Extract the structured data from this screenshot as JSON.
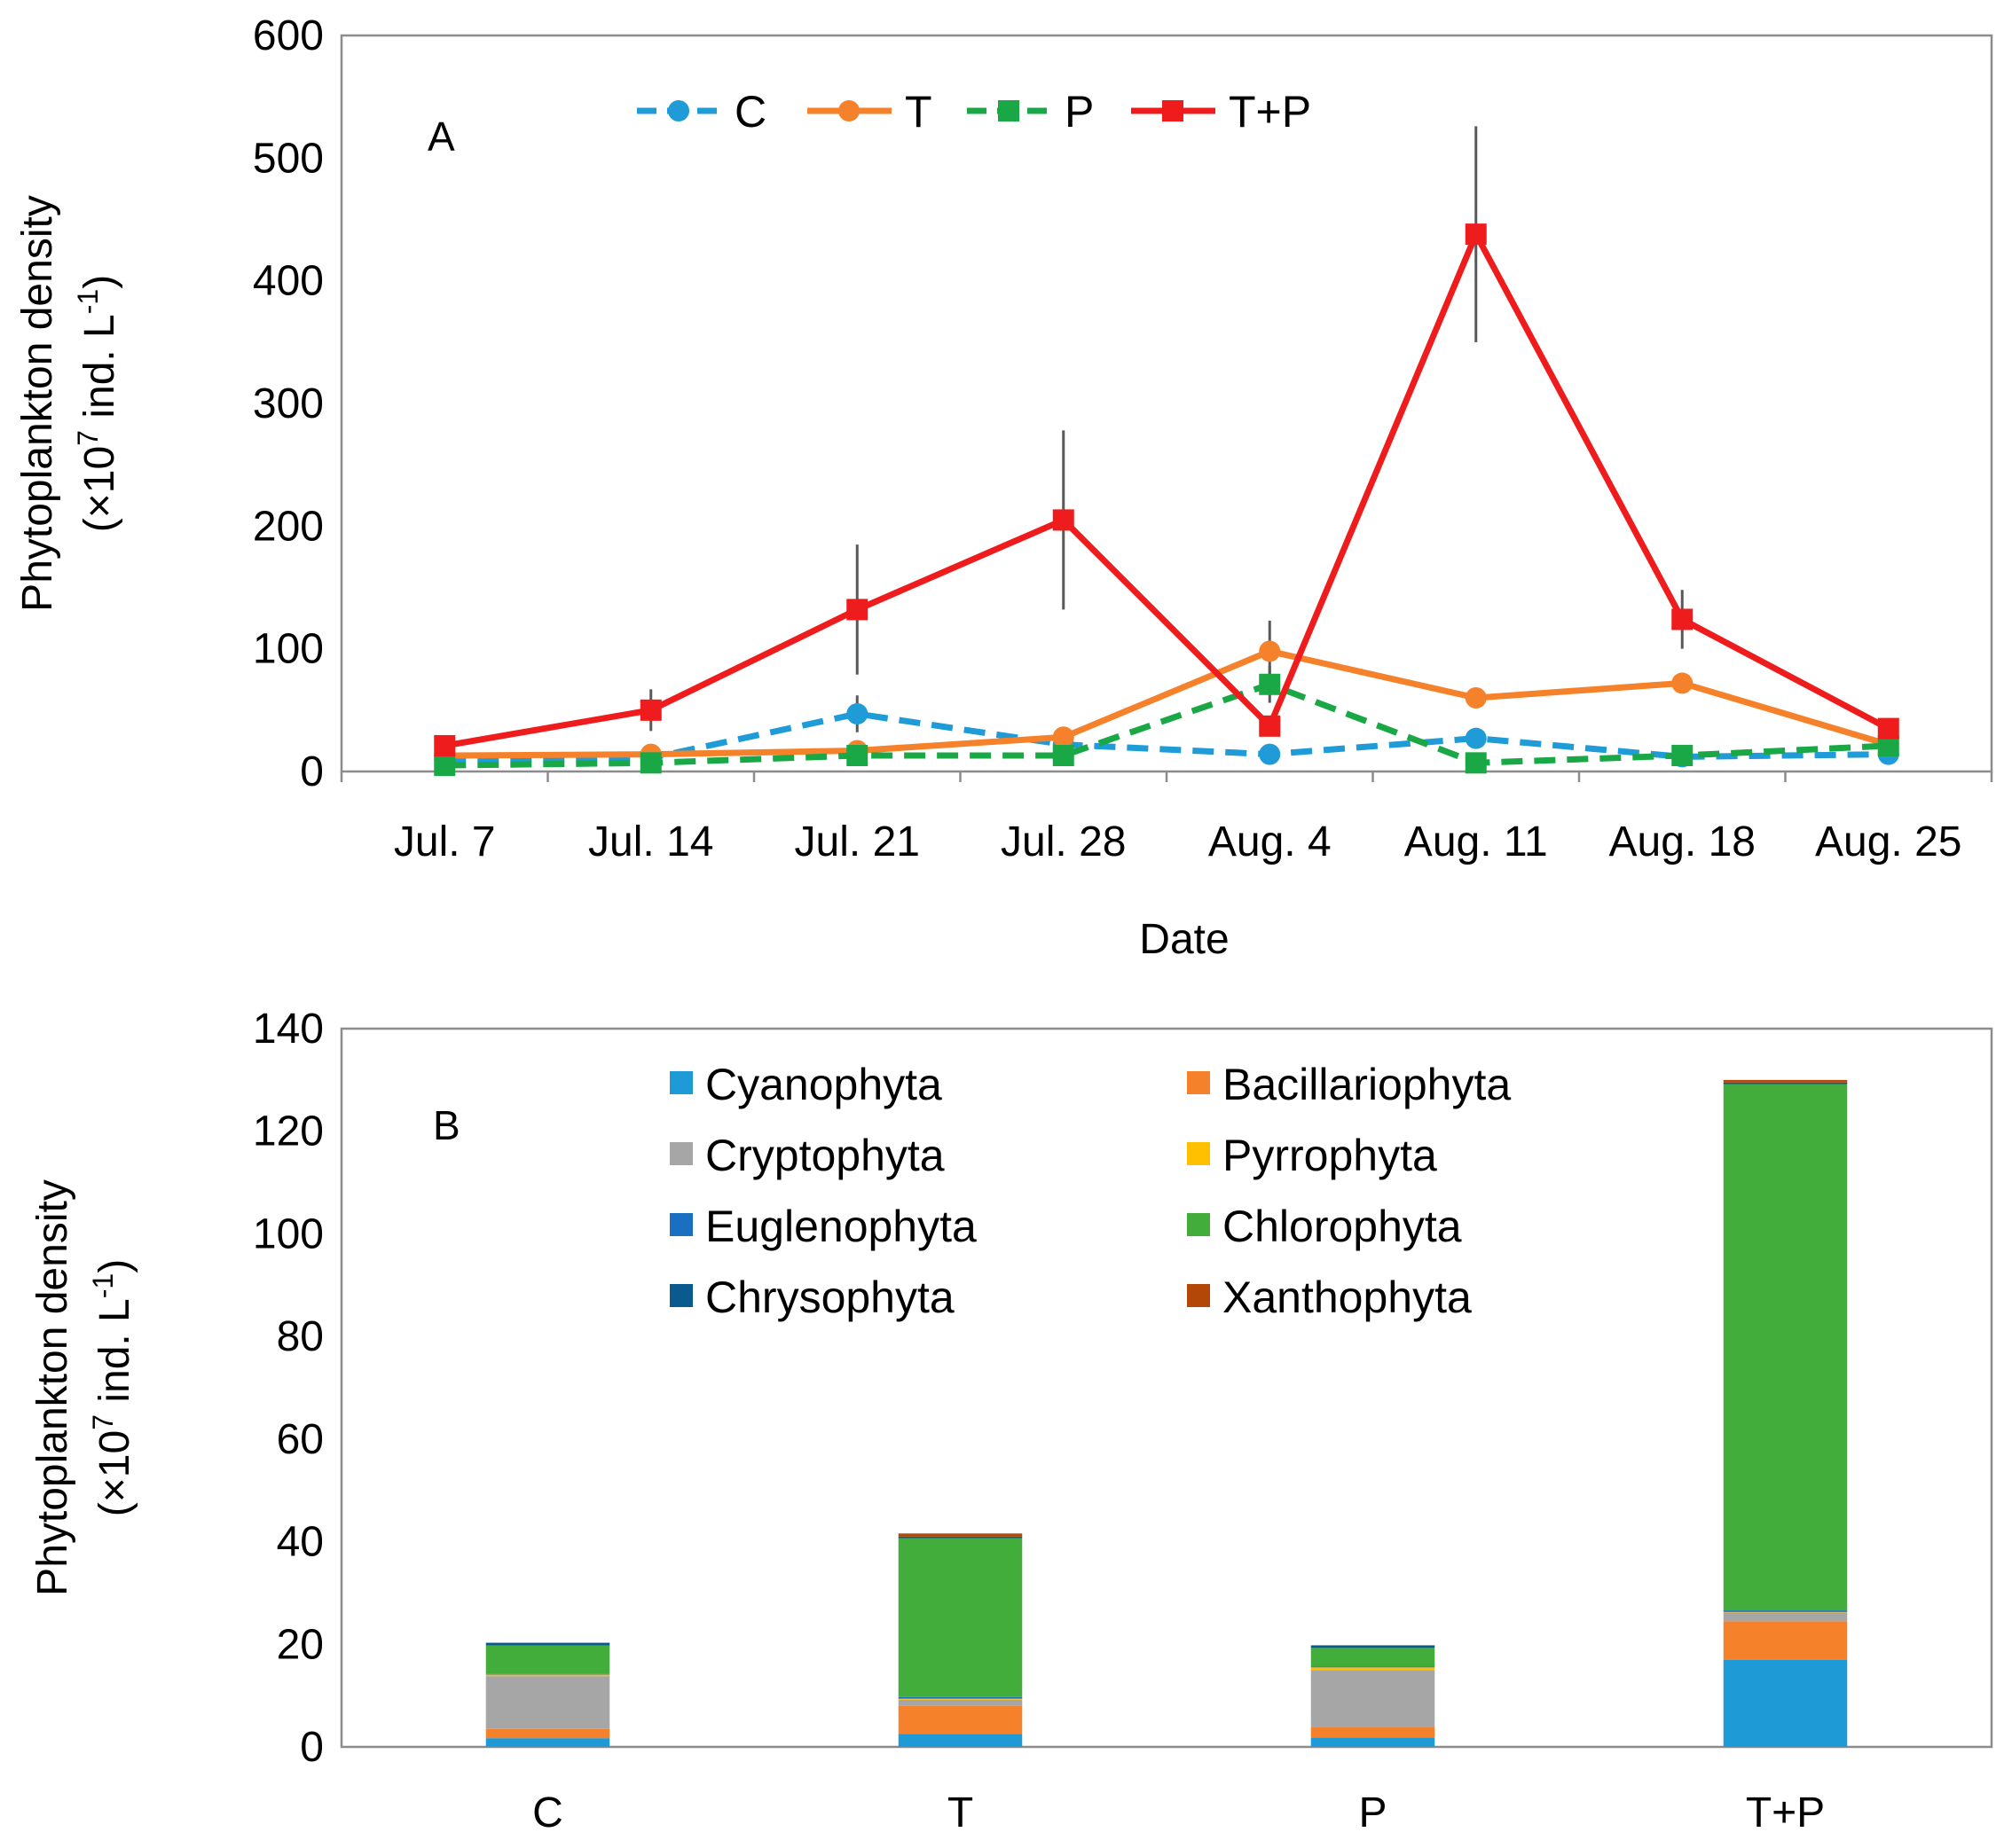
{
  "chart_data": [
    {
      "type": "line",
      "panel_label": "A",
      "xlabel": "Date",
      "ylabel": "Phytoplankton density",
      "ylabel_unit": {
        "open": "(×10",
        "exp": "7",
        "mid": " ind. L",
        "exp2": "-1",
        "close": ")"
      },
      "categories": [
        "Jul. 7",
        "Jul. 14",
        "Jul. 21",
        "Jul. 28",
        "Aug. 4",
        "Aug. 11",
        "Aug. 18",
        "Aug. 25"
      ],
      "ylim": [
        0,
        600
      ],
      "yticks": [
        0,
        100,
        200,
        300,
        400,
        500,
        600
      ],
      "legend_position": "top",
      "series": [
        {
          "name": "C",
          "color": "#1f9bd7",
          "dash": true,
          "marker": "circle",
          "values": [
            10,
            11,
            47,
            22,
            14,
            27,
            12,
            14
          ],
          "errors": [
            0,
            0,
            15,
            0,
            0,
            0,
            0,
            0
          ]
        },
        {
          "name": "T",
          "color": "#f5822a",
          "dash": false,
          "marker": "circle",
          "values": [
            13,
            14,
            17,
            28,
            98,
            60,
            72,
            22
          ],
          "errors": [
            0,
            0,
            0,
            0,
            25,
            0,
            0,
            0
          ]
        },
        {
          "name": "P",
          "color": "#19a845",
          "dash": true,
          "marker": "square",
          "values": [
            5,
            7,
            13,
            13,
            71,
            7,
            13,
            21
          ],
          "errors": [
            0,
            0,
            0,
            0,
            15,
            0,
            0,
            0
          ]
        },
        {
          "name": "T+P",
          "color": "#ee1c1c",
          "dash": false,
          "marker": "square",
          "values": [
            21,
            50,
            132,
            205,
            37,
            438,
            124,
            35
          ],
          "errors": [
            0,
            17,
            53,
            73,
            0,
            88,
            24,
            0
          ]
        }
      ]
    },
    {
      "type": "bar",
      "stacked": true,
      "panel_label": "B",
      "xlabel": "",
      "ylabel": "Phytoplankton density",
      "ylabel_unit": {
        "open": "(×10",
        "exp": "7",
        "mid": " ind. L",
        "exp2": "-1",
        "close": ")"
      },
      "categories": [
        "C",
        "T",
        "P",
        "T+P"
      ],
      "ylim": [
        0,
        140
      ],
      "yticks": [
        0,
        20,
        40,
        60,
        80,
        100,
        120,
        140
      ],
      "legend_position": "top",
      "series": [
        {
          "name": "Cyanophyta",
          "color": "#1e9ad6",
          "values": [
            1.7,
            2.5,
            1.8,
            17.0
          ]
        },
        {
          "name": "Bacillariophyta",
          "color": "#f5822a",
          "values": [
            1.8,
            5.5,
            2.0,
            7.5
          ]
        },
        {
          "name": "Cryptophyta",
          "color": "#a6a6a6",
          "values": [
            10.3,
            1.2,
            11.2,
            1.7
          ]
        },
        {
          "name": "Pyrrophyta",
          "color": "#ffc000",
          "values": [
            0.3,
            0.2,
            0.5,
            0.1
          ]
        },
        {
          "name": "Euglenophyta",
          "color": "#1b6fc3",
          "values": [
            0.1,
            0.3,
            0.2,
            0.3
          ]
        },
        {
          "name": "Chlorophyta",
          "color": "#42ad3a",
          "values": [
            5.6,
            31.0,
            3.6,
            102.6
          ]
        },
        {
          "name": "Chrysophyta",
          "color": "#0b5a8e",
          "values": [
            0.5,
            0.3,
            0.5,
            0.3
          ]
        },
        {
          "name": "Xanthophyta",
          "color": "#b34708",
          "values": [
            0.0,
            0.6,
            0.0,
            0.5
          ]
        }
      ]
    }
  ]
}
